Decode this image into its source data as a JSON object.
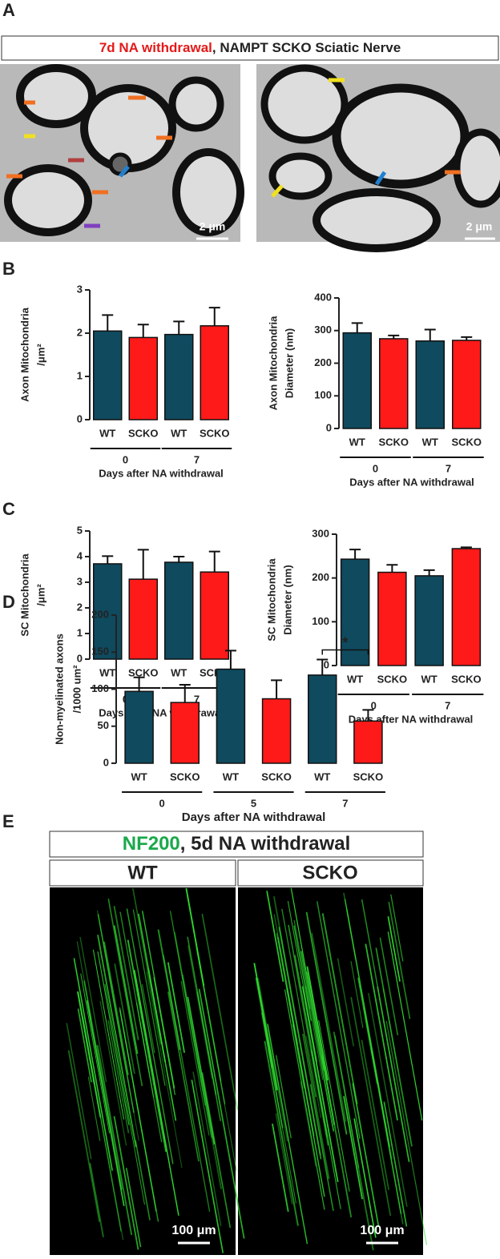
{
  "panels": [
    "A",
    "B",
    "C",
    "D",
    "E"
  ],
  "em_header": {
    "highlight": "7d NA withdrawal",
    "rest": ", NAMPT SCKO Sciatic Nerve"
  },
  "em_scale_bars": [
    "2 μm",
    "2 μm"
  ],
  "if_header": {
    "highlight": "NF200",
    "rest": ", 5d NA withdrawal"
  },
  "if_columns": [
    "WT",
    "SCKO"
  ],
  "if_scale_bars": [
    "100 μm",
    "100 μm"
  ],
  "chart_data": [
    {
      "type": "bar",
      "y_label": [
        "Axon Mitochondria",
        "/μm²"
      ],
      "x_label": "Days after NA withdrawal",
      "categories": [
        "WT",
        "SCKO",
        "WT",
        "SCKO"
      ],
      "groups": [
        "0",
        "7"
      ],
      "values": [
        2.05,
        1.9,
        1.97,
        2.17
      ],
      "errors": [
        0.37,
        0.3,
        0.3,
        0.42
      ],
      "colors": [
        "#0f4a5e",
        "#ff1a1a",
        "#0f4a5e",
        "#ff1a1a"
      ],
      "ylim": [
        0,
        3
      ],
      "yticks": [
        0,
        1,
        2,
        3
      ]
    },
    {
      "type": "bar",
      "y_label": [
        "Axon Mitochondria",
        "Diameter (nm)"
      ],
      "x_label": "Days after NA withdrawal",
      "categories": [
        "WT",
        "SCKO",
        "WT",
        "SCKO"
      ],
      "groups": [
        "0",
        "7"
      ],
      "values": [
        293,
        275,
        268,
        270
      ],
      "errors": [
        30,
        10,
        35,
        10
      ],
      "colors": [
        "#0f4a5e",
        "#ff1a1a",
        "#0f4a5e",
        "#ff1a1a"
      ],
      "ylim": [
        0,
        400
      ],
      "yticks": [
        0,
        100,
        200,
        300,
        400
      ]
    },
    {
      "type": "bar",
      "y_label": [
        "SC Mitochondria",
        "/μm²"
      ],
      "x_label": "Days after NA withdrawal",
      "categories": [
        "WT",
        "SCKO",
        "WT",
        "SCKO"
      ],
      "groups": [
        "0",
        "7"
      ],
      "values": [
        3.72,
        3.12,
        3.78,
        3.4
      ],
      "errors": [
        0.3,
        1.15,
        0.22,
        0.8
      ],
      "colors": [
        "#0f4a5e",
        "#ff1a1a",
        "#0f4a5e",
        "#ff1a1a"
      ],
      "ylim": [
        0,
        5
      ],
      "yticks": [
        0,
        1,
        2,
        3,
        4,
        5
      ]
    },
    {
      "type": "bar",
      "y_label": [
        "SC Mitochondria",
        "Diameter (nm)"
      ],
      "x_label": "Days after NA withdrawal",
      "categories": [
        "WT",
        "SCKO",
        "WT",
        "SCKO"
      ],
      "groups": [
        "0",
        "7"
      ],
      "values": [
        243,
        213,
        205,
        267
      ],
      "errors": [
        22,
        17,
        13,
        3
      ],
      "colors": [
        "#0f4a5e",
        "#ff1a1a",
        "#0f4a5e",
        "#ff1a1a"
      ],
      "ylim": [
        0,
        300
      ],
      "yticks": [
        0,
        100,
        200,
        300
      ]
    },
    {
      "type": "bar",
      "y_label": [
        "Non-myelinated axons",
        "/1000 um²"
      ],
      "x_label": "Days after NA withdrawal",
      "categories": [
        "WT",
        "SCKO",
        "WT",
        "SCKO",
        "WT",
        "SCKO"
      ],
      "groups": [
        "0",
        "5",
        "7"
      ],
      "values": [
        97,
        82,
        127,
        87,
        119,
        57
      ],
      "errors": [
        19,
        24,
        25,
        25,
        21,
        15
      ],
      "colors": [
        "#0f4a5e",
        "#ff1a1a",
        "#0f4a5e",
        "#ff1a1a",
        "#0f4a5e",
        "#ff1a1a"
      ],
      "ylim": [
        0,
        200
      ],
      "yticks": [
        0,
        50,
        100,
        150,
        200
      ],
      "annotation": "*"
    }
  ]
}
